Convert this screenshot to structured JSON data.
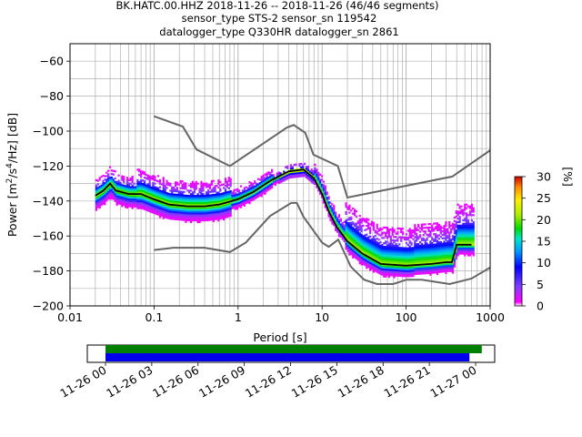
{
  "chart_data": {
    "type": "heatmap",
    "title_lines": [
      "BK.HATC.00.HHZ   2018-11-26 -- 2018-11-26  (46/46 segments)",
      "sensor_type STS-2 sensor_sn 119542",
      "datalogger_type Q330HR datalogger_sn 2861"
    ],
    "xlabel": "Period [s]",
    "ylabel": "Power [m²/s⁴/Hz] [dB]",
    "xscale": "log",
    "xlim": [
      0.01,
      1000
    ],
    "ylim": [
      -200,
      -50
    ],
    "x_tick_labels": [
      "0.01",
      "0.1",
      "1",
      "10",
      "100",
      "1000"
    ],
    "y_tick_labels": [
      "−200",
      "−180",
      "−160",
      "−140",
      "−120",
      "−100",
      "−80",
      "−60"
    ],
    "grid": true,
    "colorbar": {
      "label": "[%]",
      "range": [
        0,
        30
      ],
      "ticks": [
        "0",
        "5",
        "10",
        "15",
        "20",
        "25",
        "30"
      ]
    },
    "noise_models": [
      {
        "name": "upper",
        "x": [
          0.1,
          0.22,
          0.32,
          0.8,
          3.8,
          4.6,
          6.3,
          7.9,
          15.4,
          20,
          354.8,
          1000
        ],
        "y": [
          -91.5,
          -97.4,
          -110.5,
          -120,
          -98,
          -96.5,
          -101,
          -113.5,
          -120,
          -138,
          -126,
          -111
        ]
      },
      {
        "name": "lower",
        "x": [
          0.1,
          0.17,
          0.4,
          0.8,
          1.24,
          2.4,
          4.3,
          5,
          6,
          10,
          12,
          15.6,
          21.9,
          31.6,
          45,
          70,
          101,
          154,
          328,
          600,
          1000
        ],
        "y": [
          -168,
          -166.7,
          -166.7,
          -169.2,
          -163.7,
          -148.6,
          -141.1,
          -141.1,
          -149,
          -163.8,
          -166.2,
          -162.1,
          -177.5,
          -185,
          -187.5,
          -187.5,
          -185,
          -185,
          -187.5,
          -184.4,
          -178
        ]
      }
    ],
    "mode_curve": {
      "x": [
        0.02,
        0.025,
        0.03,
        0.035,
        0.05,
        0.07,
        0.1,
        0.15,
        0.25,
        0.4,
        0.6,
        1,
        1.5,
        2.5,
        4,
        6,
        8,
        10,
        12,
        15,
        20,
        30,
        50,
        100,
        200,
        300,
        350,
        400,
        500,
        600
      ],
      "y": [
        -137,
        -134,
        -130,
        -134,
        -136,
        -136,
        -139,
        -142,
        -143,
        -143,
        -142,
        -139,
        -135,
        -128,
        -123,
        -122,
        -127,
        -136,
        -146,
        -155,
        -163,
        -170,
        -176,
        -177,
        -176,
        -175,
        -175,
        -165,
        -165,
        -165
      ]
    },
    "time_axis": {
      "labels": [
        "11-26 00",
        "11-26 03",
        "11-26 06",
        "11-26 09",
        "11-26 12",
        "11-26 15",
        "11-26 18",
        "11-26 21",
        "11-27 00"
      ],
      "bars": [
        {
          "color": "#008000",
          "start_hours": 0,
          "end_hours": 24.4
        },
        {
          "color": "#0000ee",
          "start_hours": 0,
          "end_hours": 23.6
        }
      ]
    }
  }
}
